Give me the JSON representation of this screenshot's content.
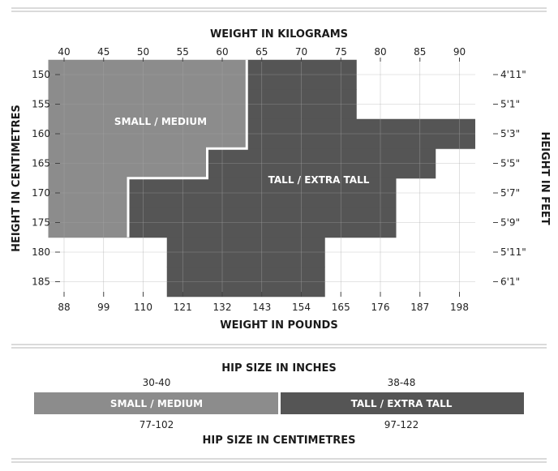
{
  "chart_data": [
    {
      "type": "heatmap",
      "title": "",
      "top_axis": {
        "label": "WEIGHT IN KILOGRAMS",
        "ticks": [
          40,
          45,
          50,
          55,
          60,
          65,
          70,
          75,
          80,
          85,
          90
        ],
        "range": [
          38,
          92
        ]
      },
      "bottom_axis": {
        "label": "WEIGHT IN POUNDS",
        "ticks": [
          "88",
          "99",
          "110",
          "121",
          "132",
          "143",
          "154",
          "165",
          "176",
          "187",
          "198"
        ]
      },
      "left_axis": {
        "label": "HEIGHT IN CENTIMETRES",
        "ticks": [
          150,
          155,
          160,
          165,
          170,
          175,
          180,
          185
        ],
        "range": [
          147.5,
          187.5
        ]
      },
      "right_axis": {
        "label": "HEIGHT IN FEET",
        "ticks": [
          "4'11\"",
          "5'1\"",
          "5'3\"",
          "5'5\"",
          "5'7\"",
          "5'9\"",
          "5'11\"",
          "6'1\""
        ]
      },
      "grid": true,
      "regions": [
        {
          "name": "SMALL / MEDIUM",
          "color": "#8c8c8c",
          "cells_by_height_band": [
            {
              "band": "150",
              "weight_kg": [
                38,
                63
              ]
            },
            {
              "band": "155",
              "weight_kg": [
                38,
                63
              ]
            },
            {
              "band": "160",
              "weight_kg": [
                38,
                63
              ]
            },
            {
              "band": "165",
              "weight_kg": [
                38,
                58
              ]
            },
            {
              "band": "170",
              "weight_kg": [
                38,
                48
              ]
            },
            {
              "band": "175",
              "weight_kg": [
                38,
                48
              ]
            }
          ]
        },
        {
          "name": "TALL / EXTRA TALL",
          "color": "#555555",
          "cells_by_height_band": [
            {
              "band": "150",
              "weight_kg": [
                63,
                77
              ]
            },
            {
              "band": "155",
              "weight_kg": [
                63,
                77
              ]
            },
            {
              "band": "160",
              "weight_kg": [
                63,
                92
              ]
            },
            {
              "band": "165",
              "weight_kg": [
                58,
                87
              ]
            },
            {
              "band": "170",
              "weight_kg": [
                48,
                82
              ]
            },
            {
              "band": "175",
              "weight_kg": [
                48,
                82
              ]
            },
            {
              "band": "180",
              "weight_kg": [
                53,
                73
              ]
            },
            {
              "band": "185",
              "weight_kg": [
                53,
                73
              ]
            }
          ]
        }
      ]
    },
    {
      "type": "bar",
      "title": "HIP SIZE IN INCHES",
      "bottom_title": "HIP SIZE IN CENTIMETRES",
      "segments": [
        {
          "name": "SMALL / MEDIUM",
          "inches": "30-40",
          "centimetres": "77-102",
          "color": "#8c8c8c"
        },
        {
          "name": "TALL / EXTRA TALL",
          "inches": "38-48",
          "centimetres": "97-122",
          "color": "#555555"
        }
      ]
    }
  ]
}
